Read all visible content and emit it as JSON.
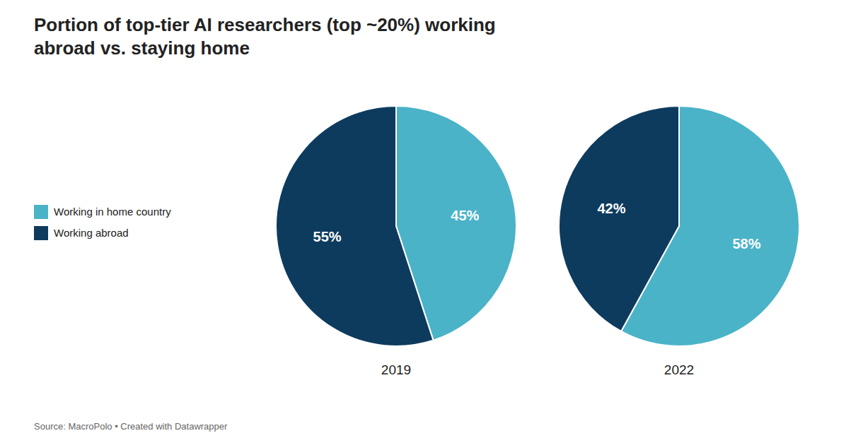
{
  "chart_data": [
    {
      "type": "pie",
      "title": "Portion of top-tier AI researchers (top ~20%) working\nabroad vs. staying home",
      "subtitle": "2019",
      "annotations": [
        "Source: MacroPolo • Created with Datawrapper"
      ],
      "categories": [
        "Working in home country",
        "Working abroad"
      ],
      "values": [
        45,
        55
      ],
      "value_labels": [
        "45%",
        "55%"
      ],
      "colors": [
        "#4ab3c8",
        "#0d3b5e"
      ],
      "data_labels": true,
      "legend": "left"
    },
    {
      "type": "pie",
      "subtitle": "2022",
      "categories": [
        "Working in home country",
        "Working abroad"
      ],
      "values": [
        58,
        42
      ],
      "value_labels": [
        "58%",
        "42%"
      ],
      "colors": [
        "#4ab3c8",
        "#0d3b5e"
      ],
      "data_labels": true
    }
  ]
}
